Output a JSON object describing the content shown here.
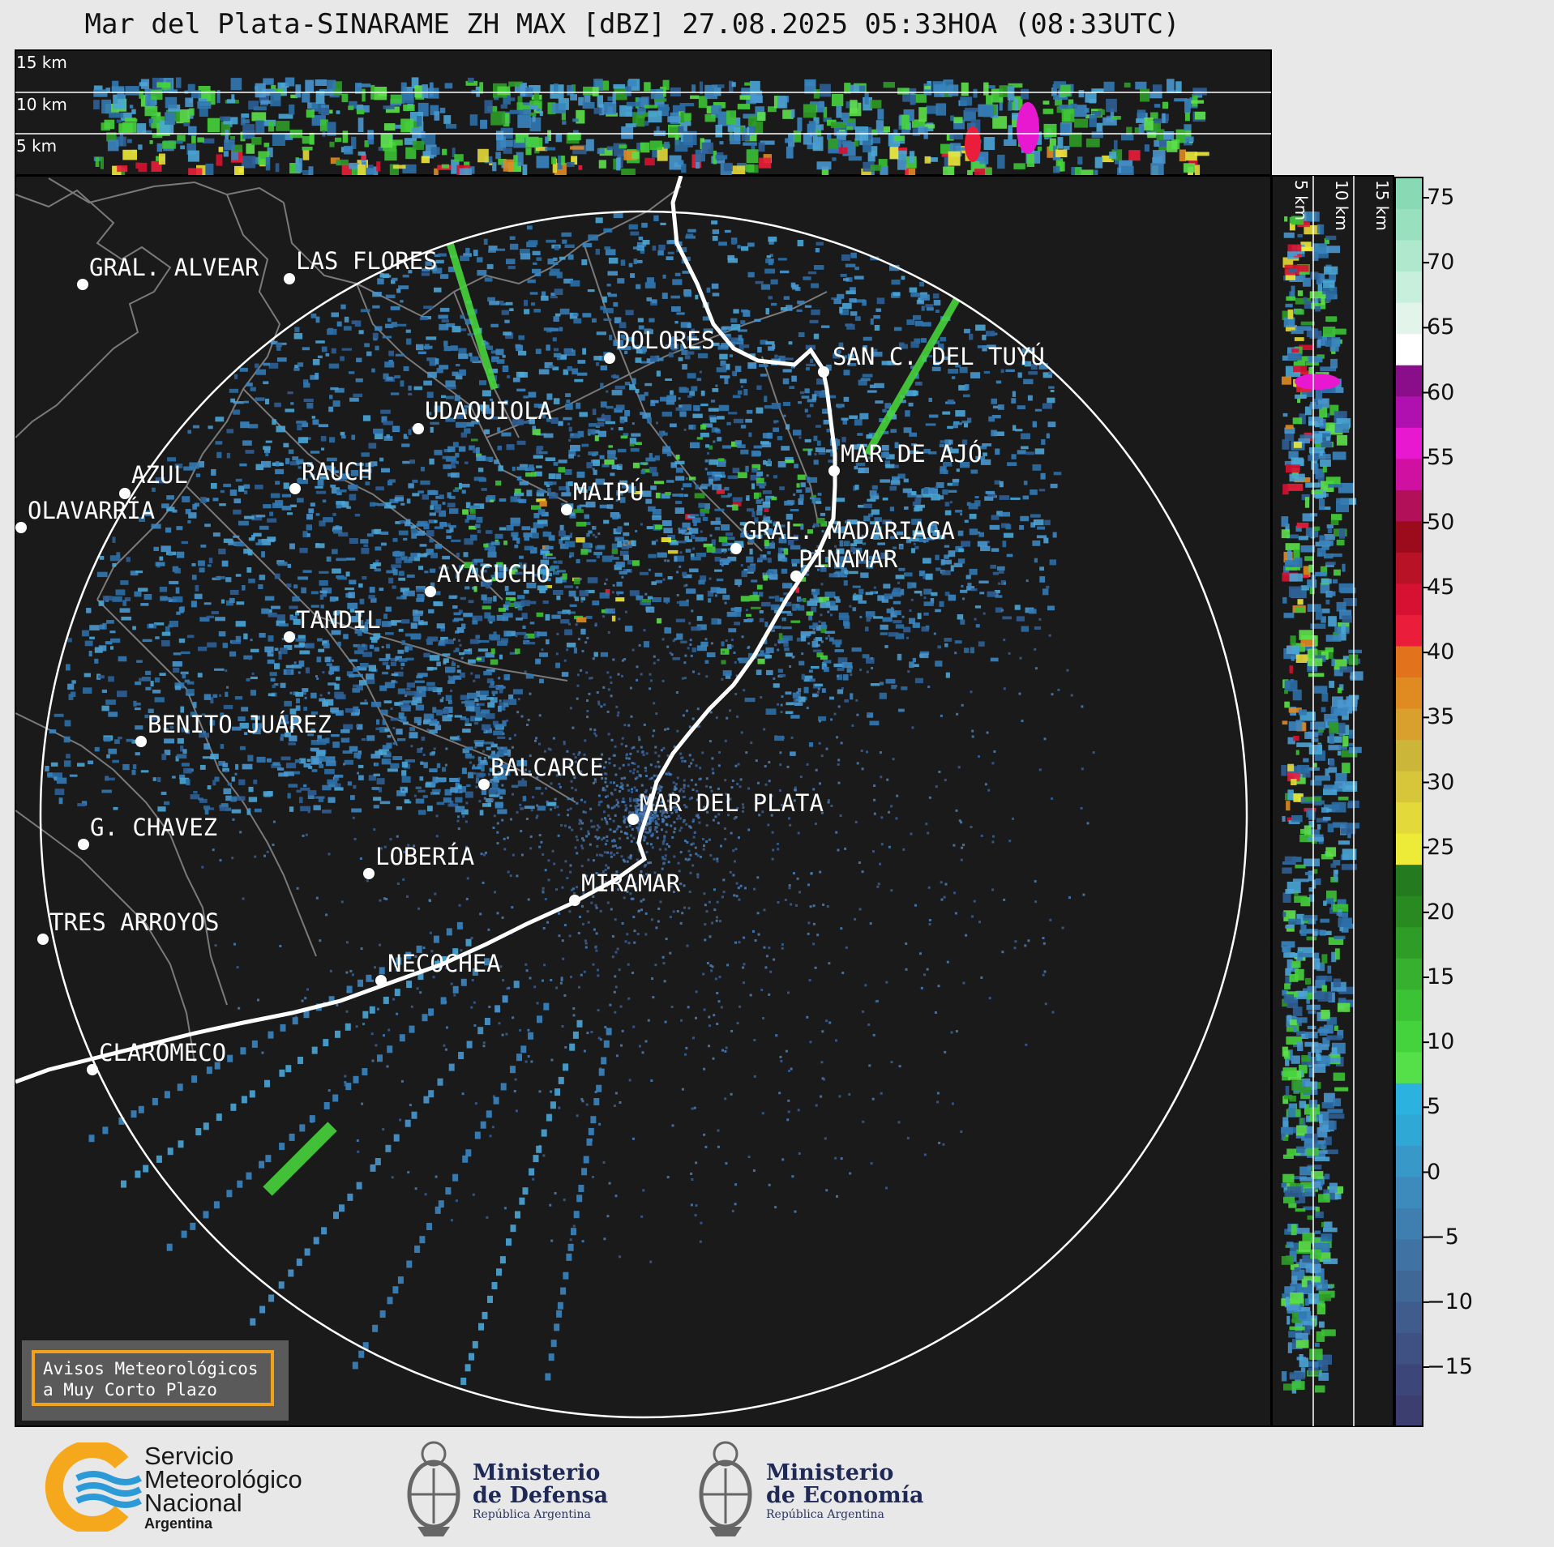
{
  "title": "Mar del Plata-SINARAME ZH MAX [dBZ] 27.08.2025 05:33HOA (08:33UTC)",
  "top_panel": {
    "altitude_labels": [
      "15 km",
      "10 km",
      "5 km"
    ]
  },
  "side_panel": {
    "altitude_labels": [
      "5 km",
      "10 km",
      "15 km"
    ]
  },
  "colorbar": {
    "ticks": [
      "75",
      "70",
      "65",
      "60",
      "55",
      "50",
      "45",
      "40",
      "35",
      "30",
      "25",
      "20",
      "15",
      "10",
      "5",
      "0",
      "−5",
      "−10",
      "−15"
    ],
    "colors": [
      "#3b3e6e",
      "#3d4678",
      "#3f5182",
      "#405c8c",
      "#406897",
      "#4073a3",
      "#3f7fb0",
      "#3d8bbd",
      "#3899c9",
      "#2fa8d6",
      "#2bb2df",
      "#55e04a",
      "#44d23d",
      "#3cc235",
      "#37b02f",
      "#2f9c27",
      "#2a8a22",
      "#247a1e",
      "#eeea38",
      "#e4d93a",
      "#d7c63a",
      "#cbb63a",
      "#d9a02e",
      "#e08a22",
      "#e2731c",
      "#ea1e3a",
      "#d71131",
      "#b81226",
      "#9b0b1c",
      "#b3105a",
      "#d010a0",
      "#e818d0",
      "#b010b0",
      "#8a0e8a",
      "#ffffff",
      "#e3f5ea",
      "#c8efdb",
      "#afe8cc",
      "#99e1be",
      "#8ad9b5"
    ]
  },
  "cities": [
    {
      "name": "GRAL. ALVEAR"
    },
    {
      "name": "LAS FLORES"
    },
    {
      "name": "DOLORES"
    },
    {
      "name": "SAN C. DEL TUYÚ"
    },
    {
      "name": "UDAQUIOLA"
    },
    {
      "name": "RAUCH"
    },
    {
      "name": "AZUL"
    },
    {
      "name": "OLAVARRÍA"
    },
    {
      "name": "MAIPÚ"
    },
    {
      "name": "MAR DE AJÓ"
    },
    {
      "name": "GRAL. MADARIAGA"
    },
    {
      "name": "PINAMAR"
    },
    {
      "name": "AYACUCHO"
    },
    {
      "name": "TANDIL"
    },
    {
      "name": "BENITO JUÁREZ"
    },
    {
      "name": "BALCARCE"
    },
    {
      "name": "MAR DEL PLATA"
    },
    {
      "name": "G. CHAVEZ"
    },
    {
      "name": "LOBERÍA"
    },
    {
      "name": "MIRAMAR"
    },
    {
      "name": "TRES ARROYOS"
    },
    {
      "name": "NECOCHEA"
    },
    {
      "name": "CLAROMECO"
    }
  ],
  "avisos": {
    "line1": "Avisos Meteorológicos",
    "line2": "a Muy Corto Plazo"
  },
  "footer": {
    "smn": {
      "line1": "Servicio",
      "line2": "Meteorológico",
      "line3": "Nacional",
      "line4": "Argentina"
    },
    "defensa": {
      "line1": "Ministerio",
      "line2": "de Defensa",
      "line3": "República Argentina"
    },
    "economia": {
      "line1": "Ministerio",
      "line2": "de Economía",
      "line3": "República Argentina"
    }
  }
}
